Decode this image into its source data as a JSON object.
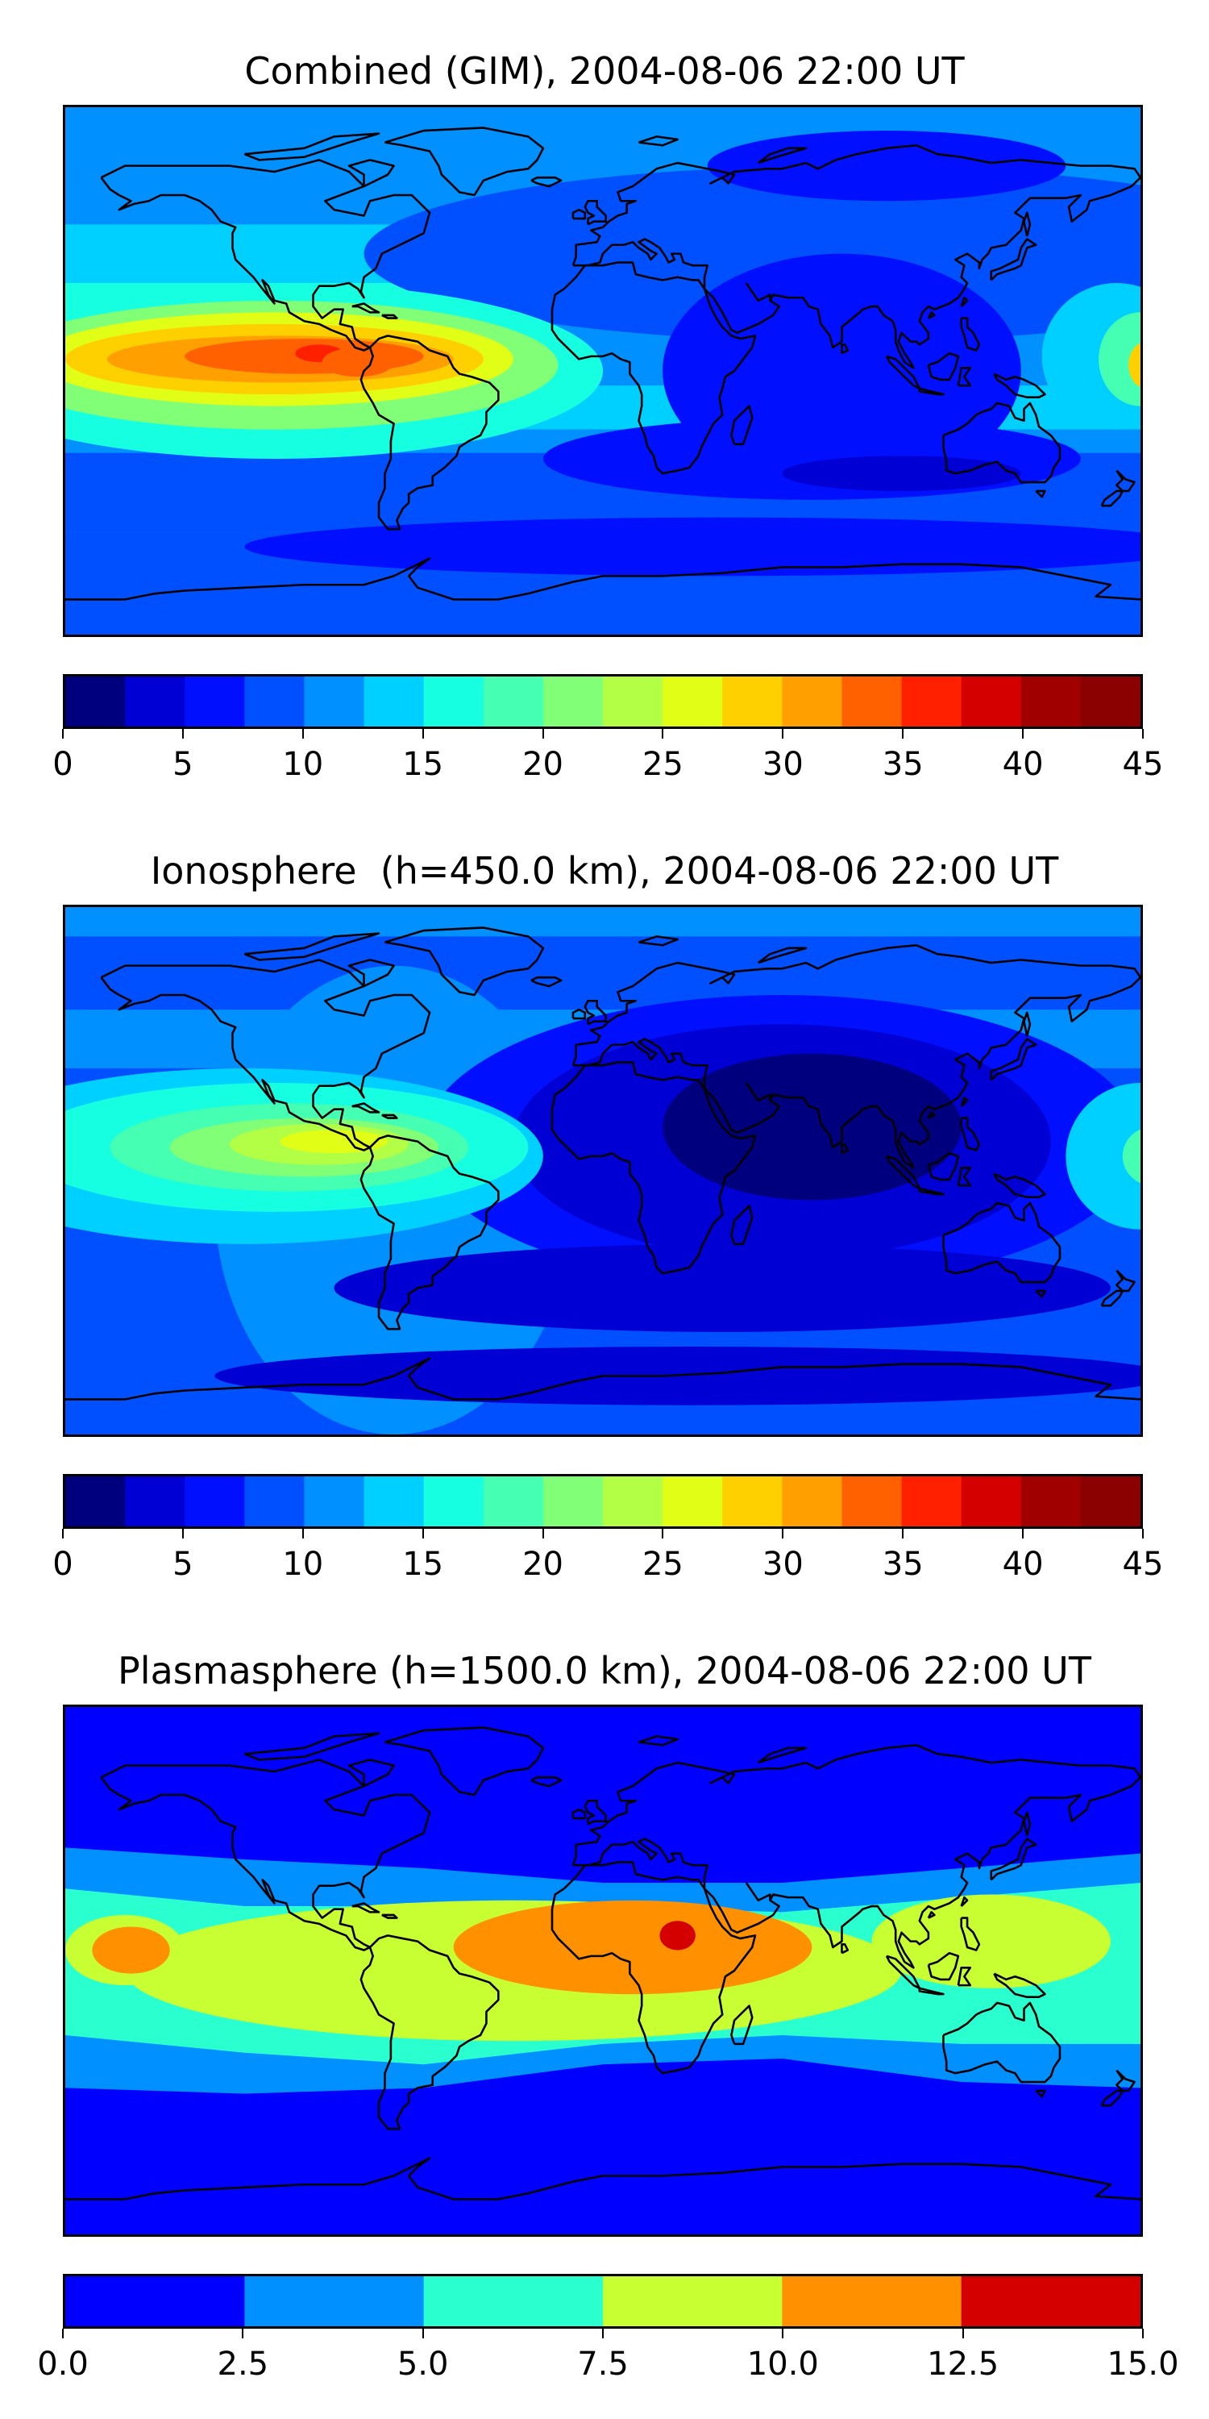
{
  "panels": [
    {
      "title": "Combined (GIM), 2004-08-06 22:00 UT",
      "scale": "gim",
      "colorbar": {
        "min": 0,
        "max": 45,
        "ticks": [
          "0",
          "5",
          "10",
          "15",
          "20",
          "25",
          "30",
          "35",
          "40",
          "45"
        ],
        "levels": [
          0,
          2.5,
          5,
          7.5,
          10,
          12.5,
          15,
          17.5,
          20,
          22.5,
          25,
          27.5,
          30,
          32.5,
          35,
          37.5,
          40,
          42.5,
          45
        ]
      }
    },
    {
      "title": "Ionosphere  (h=450.0 km), 2004-08-06 22:00 UT",
      "scale": "iono",
      "colorbar": {
        "min": 0,
        "max": 45,
        "ticks": [
          "0",
          "5",
          "10",
          "15",
          "20",
          "25",
          "30",
          "35",
          "40",
          "45"
        ],
        "levels": [
          0,
          2.5,
          5,
          7.5,
          10,
          12.5,
          15,
          17.5,
          20,
          22.5,
          25,
          27.5,
          30,
          32.5,
          35,
          37.5,
          40,
          42.5,
          45
        ]
      }
    },
    {
      "title": "Plasmasphere (h=1500.0 km), 2004-08-06 22:00 UT",
      "scale": "plasma",
      "colorbar": {
        "min": 0,
        "max": 15,
        "ticks": [
          "0.0",
          "2.5",
          "5.0",
          "7.5",
          "10.0",
          "12.5",
          "15.0"
        ],
        "levels": [
          0,
          2.5,
          5,
          7.5,
          10,
          12.5,
          15
        ]
      }
    }
  ],
  "colors": {
    "jet18": [
      "#00007f",
      "#0000d4",
      "#0010ff",
      "#0050ff",
      "#0090ff",
      "#00d0ff",
      "#16ffe1",
      "#45ffb2",
      "#80ff77",
      "#b2ff45",
      "#e1ff16",
      "#ffd000",
      "#ffa000",
      "#ff6000",
      "#ff2000",
      "#d40000",
      "#a00000",
      "#8b0000"
    ],
    "jet6": [
      "#0000ff",
      "#0090ff",
      "#2affd0",
      "#c8ff32",
      "#ff9000",
      "#d40000"
    ]
  }
}
